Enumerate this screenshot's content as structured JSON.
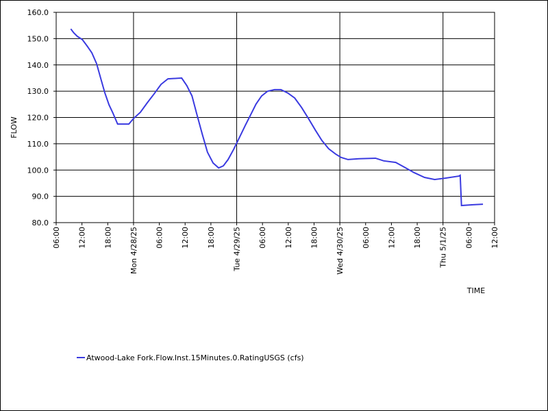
{
  "chart_data": {
    "type": "line",
    "x_label": "TIME",
    "y_label": "FLOW",
    "x": [
      9.4,
      10.1,
      10.9,
      12.1,
      13.2,
      14.3,
      15.4,
      16.4,
      17.3,
      18.3,
      19.2,
      20.3,
      22.9,
      24.0,
      25.6,
      27.2,
      28.8,
      30.4,
      32.0,
      35.2,
      36.4,
      37.6,
      38.7,
      40.0,
      41.2,
      42.5,
      43.8,
      44.9,
      46.0,
      47.3,
      48.7,
      50.0,
      51.3,
      52.5,
      53.8,
      55.2,
      56.8,
      58.3,
      59.9,
      61.5,
      63.1,
      64.7,
      66.3,
      67.8,
      69.4,
      71.0,
      72.3,
      73.9,
      76.4,
      80.3,
      82.2,
      85.0,
      87.0,
      89.3,
      91.7,
      94.1,
      96.5,
      99.7,
      100.0,
      100.3,
      103.0,
      105.3
    ],
    "series": [
      {
        "name": "Atwood-Lake Fork.Flow.Inst.15Minutes.0.RatingUSGS (cfs)",
        "color": "#3a3ae0",
        "values": [
          153.7,
          152.2,
          150.9,
          149.6,
          147.2,
          144.6,
          140.5,
          134.7,
          129.5,
          124.8,
          121.7,
          117.5,
          117.5,
          119.6,
          122.0,
          125.6,
          129.0,
          132.6,
          134.7,
          135.0,
          132.1,
          128.2,
          121.4,
          113.6,
          106.8,
          102.7,
          100.8,
          101.6,
          104.0,
          107.9,
          112.6,
          117.0,
          121.2,
          125.1,
          128.2,
          130.0,
          130.6,
          130.6,
          129.3,
          127.4,
          123.8,
          119.6,
          115.2,
          111.3,
          108.1,
          106.1,
          104.8,
          104.0,
          104.3,
          104.5,
          103.5,
          102.9,
          101.1,
          99.0,
          97.2,
          96.4,
          96.9,
          97.7,
          98.0,
          86.5,
          86.8,
          87.0
        ]
      }
    ],
    "xlim": [
      6,
      108
    ],
    "xticks": [
      {
        "value": 6,
        "label": "06:00"
      },
      {
        "value": 12,
        "label": "12:00"
      },
      {
        "value": 18,
        "label": "18:00"
      },
      {
        "value": 24,
        "label": "Mon 4/28/25"
      },
      {
        "value": 30,
        "label": "06:00"
      },
      {
        "value": 36,
        "label": "12:00"
      },
      {
        "value": 42,
        "label": "18:00"
      },
      {
        "value": 48,
        "label": "Tue 4/29/25"
      },
      {
        "value": 54,
        "label": "06:00"
      },
      {
        "value": 60,
        "label": "12:00"
      },
      {
        "value": 66,
        "label": "18:00"
      },
      {
        "value": 72,
        "label": "Wed 4/30/25"
      },
      {
        "value": 78,
        "label": "06:00"
      },
      {
        "value": 84,
        "label": "12:00"
      },
      {
        "value": 90,
        "label": "18:00"
      },
      {
        "value": 96,
        "label": "Thu 5/1/25"
      },
      {
        "value": 102,
        "label": "06:00"
      },
      {
        "value": 108,
        "label": "12:00"
      }
    ],
    "major_xticks": [
      24,
      48,
      72,
      96
    ],
    "ylim": [
      80,
      160
    ],
    "yticks": [
      {
        "value": 80,
        "label": "80.0"
      },
      {
        "value": 90,
        "label": "90.0"
      },
      {
        "value": 100,
        "label": "100.0"
      },
      {
        "value": 110,
        "label": "110.0"
      },
      {
        "value": 120,
        "label": "120.0"
      },
      {
        "value": 130,
        "label": "130.0"
      },
      {
        "value": 140,
        "label": "140.0"
      },
      {
        "value": 150,
        "label": "150.0"
      },
      {
        "value": 160,
        "label": "160.0"
      }
    ],
    "grid": true
  }
}
